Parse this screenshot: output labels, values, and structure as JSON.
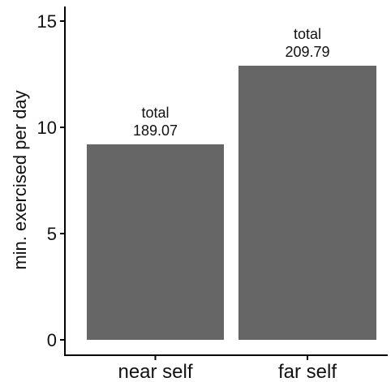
{
  "chart_data": {
    "type": "bar",
    "categories": [
      "near self",
      "far self"
    ],
    "values": [
      9.2,
      12.9
    ],
    "annotations": [
      {
        "line1": "total",
        "line2": "189.07"
      },
      {
        "line1": "total",
        "line2": "209.79"
      }
    ],
    "title": "",
    "xlabel": "",
    "ylabel": "min. exercised per day",
    "ylim": [
      0,
      15.5
    ],
    "yticks": [
      0,
      5,
      10,
      15
    ],
    "grid": false,
    "bar_color": "#666666"
  }
}
